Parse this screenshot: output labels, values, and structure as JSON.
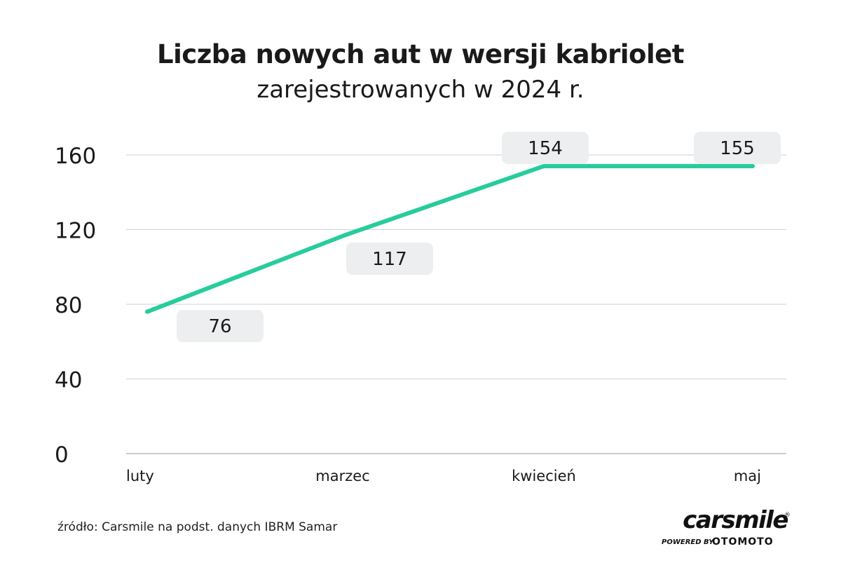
{
  "chart_data": {
    "type": "line",
    "title": "Liczba nowych aut w wersji kabriolet",
    "subtitle": "zarejestrowanych w 2024 r.",
    "categories": [
      "luty",
      "marzec",
      "kwiecień",
      "maj"
    ],
    "values": [
      76,
      117,
      154,
      155
    ],
    "data_labels": [
      "76",
      "117",
      "154",
      "155"
    ],
    "yticks": [
      "0",
      "40",
      "80",
      "120",
      "160"
    ],
    "ylim": [
      0,
      160
    ],
    "grid": true,
    "legend": false,
    "line_color": "#27cc9d",
    "label_box_color": "#eceeef"
  },
  "footer": {
    "source": "źródło: Carsmile na podst. danych IBRM Samar"
  },
  "logo": {
    "name": "carsmile",
    "registered": "®",
    "powered_by": "POWERED BY",
    "brand": "OTOMOTO"
  }
}
